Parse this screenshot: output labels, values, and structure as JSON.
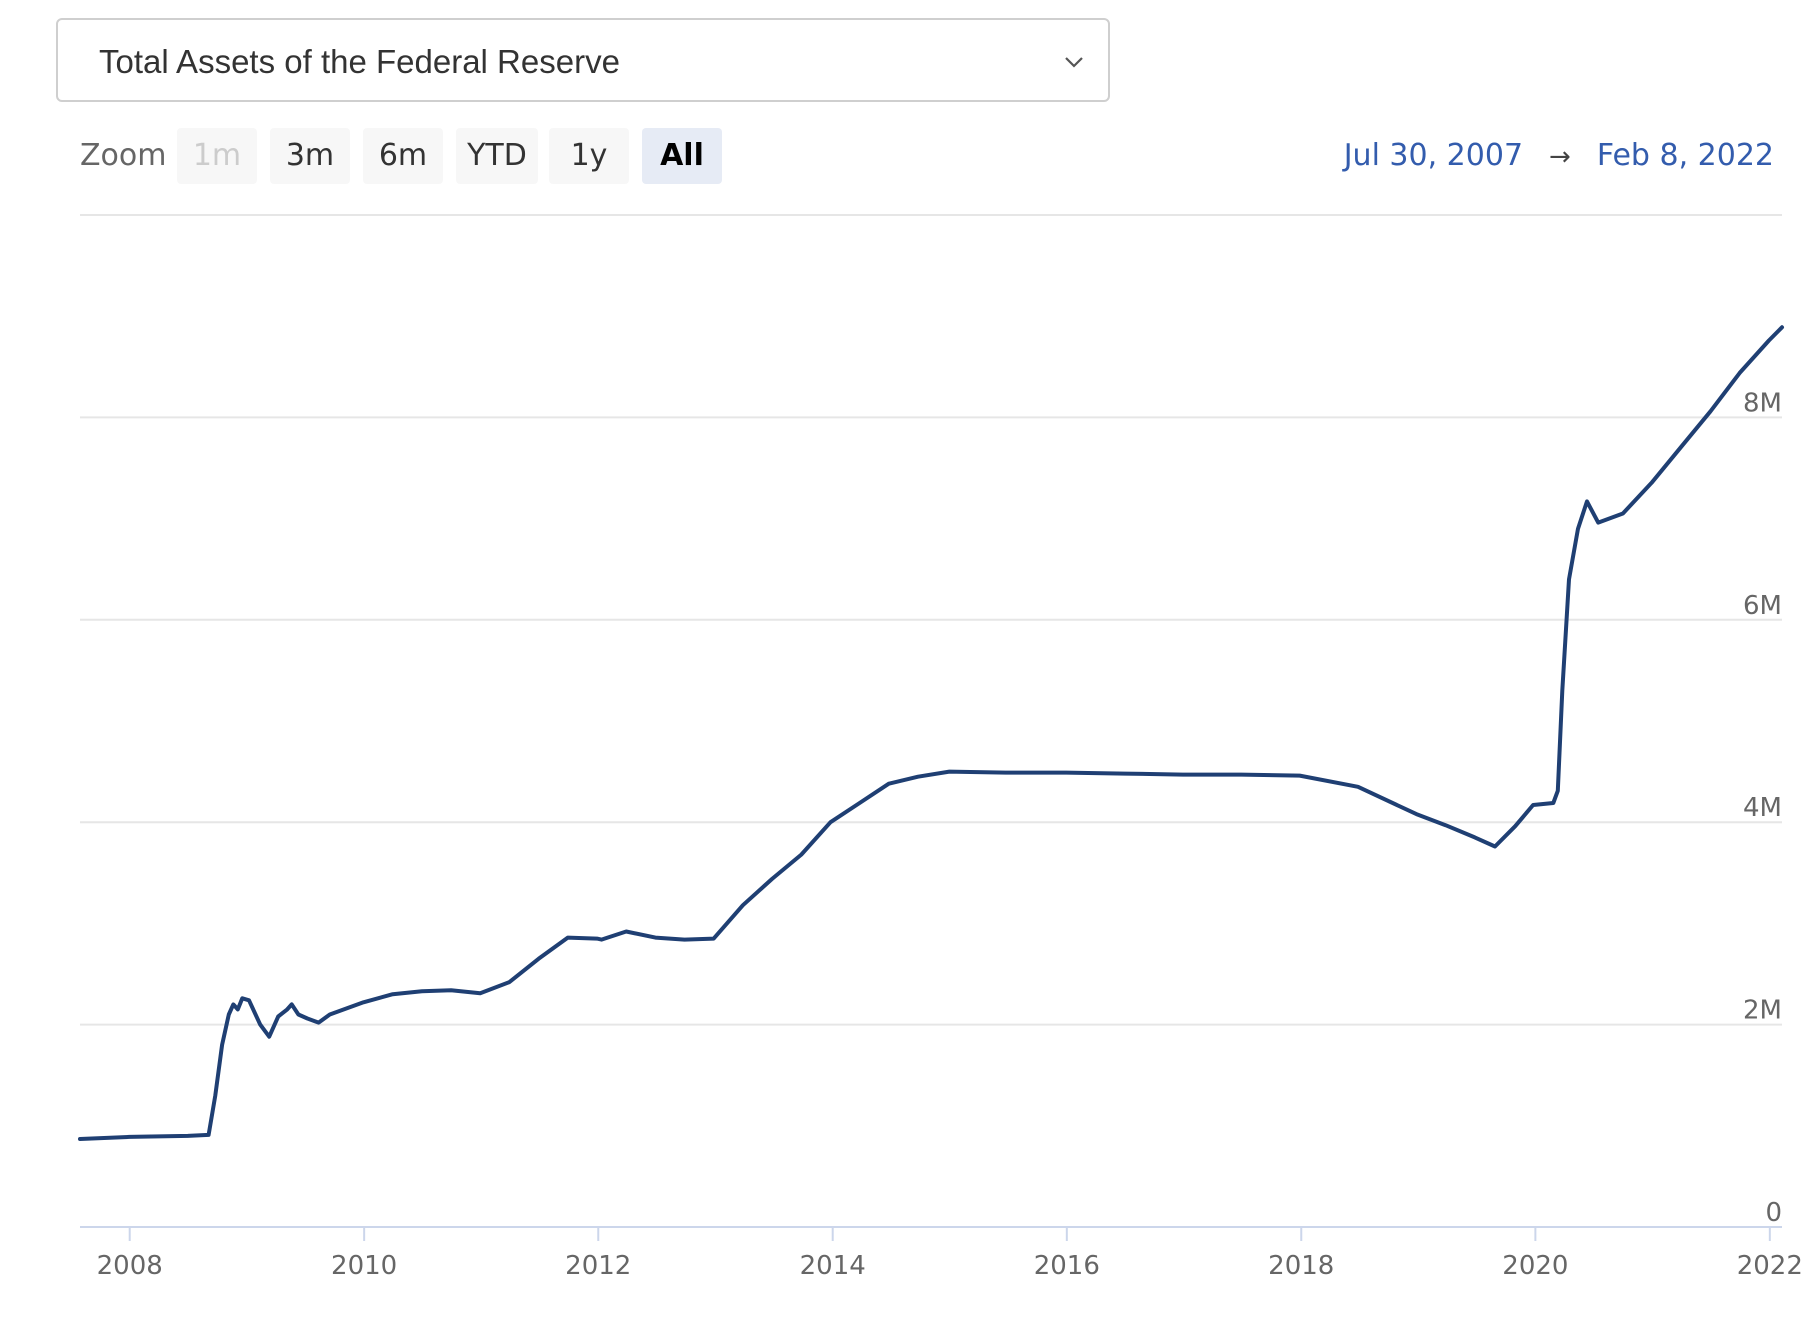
{
  "series_selector": {
    "selected": "Total Assets of the Federal Reserve",
    "icon": "chevron-down-icon"
  },
  "zoom": {
    "label": "Zoom",
    "buttons": [
      {
        "label": "1m",
        "state": "disabled"
      },
      {
        "label": "3m",
        "state": "normal"
      },
      {
        "label": "6m",
        "state": "normal"
      },
      {
        "label": "YTD",
        "state": "normal"
      },
      {
        "label": "1y",
        "state": "normal"
      },
      {
        "label": "All",
        "state": "active"
      }
    ]
  },
  "range": {
    "from": "Jul 30, 2007",
    "arrow": "→",
    "to": "Feb 8, 2022"
  },
  "colors": {
    "line": "#1f3f73",
    "grid": "#e6e6e6",
    "range_text": "#335cad"
  },
  "chart_data": {
    "type": "line",
    "title": "",
    "xlabel": "",
    "ylabel": "",
    "x_ticks": [
      "2008",
      "2010",
      "2012",
      "2014",
      "2016",
      "2018",
      "2020",
      "2022"
    ],
    "y_ticks": [
      {
        "value": 0,
        "label": "0"
      },
      {
        "value": 2000000,
        "label": "2M"
      },
      {
        "value": 4000000,
        "label": "4M"
      },
      {
        "value": 6000000,
        "label": "6M"
      },
      {
        "value": 8000000,
        "label": "8M"
      }
    ],
    "xlim": [
      "2007-07-30",
      "2022-02-08"
    ],
    "ylim": [
      0,
      10000000
    ],
    "grid": "horizontal",
    "series": [
      {
        "points": [
          [
            "2007-07-30",
            870000
          ],
          [
            "2007-12-31",
            890000
          ],
          [
            "2008-06-30",
            900000
          ],
          [
            "2008-09-03",
            910000
          ],
          [
            "2008-09-24",
            1300000
          ],
          [
            "2008-10-15",
            1800000
          ],
          [
            "2008-11-05",
            2100000
          ],
          [
            "2008-11-19",
            2200000
          ],
          [
            "2008-12-03",
            2150000
          ],
          [
            "2008-12-17",
            2260000
          ],
          [
            "2009-01-07",
            2240000
          ],
          [
            "2009-02-11",
            2000000
          ],
          [
            "2009-03-11",
            1880000
          ],
          [
            "2009-04-08",
            2080000
          ],
          [
            "2009-05-06",
            2150000
          ],
          [
            "2009-05-20",
            2200000
          ],
          [
            "2009-06-10",
            2100000
          ],
          [
            "2009-07-08",
            2060000
          ],
          [
            "2009-08-12",
            2020000
          ],
          [
            "2009-09-16",
            2100000
          ],
          [
            "2009-12-30",
            2220000
          ],
          [
            "2010-03-31",
            2300000
          ],
          [
            "2010-06-30",
            2330000
          ],
          [
            "2010-09-29",
            2340000
          ],
          [
            "2010-12-29",
            2310000
          ],
          [
            "2011-03-30",
            2420000
          ],
          [
            "2011-06-29",
            2650000
          ],
          [
            "2011-09-28",
            2860000
          ],
          [
            "2011-12-28",
            2850000
          ],
          [
            "2012-01-11",
            2840000
          ],
          [
            "2012-03-28",
            2920000
          ],
          [
            "2012-06-27",
            2860000
          ],
          [
            "2012-09-26",
            2840000
          ],
          [
            "2012-12-26",
            2850000
          ],
          [
            "2013-03-27",
            3180000
          ],
          [
            "2013-06-26",
            3440000
          ],
          [
            "2013-09-25",
            3680000
          ],
          [
            "2013-12-25",
            4000000
          ],
          [
            "2014-03-26",
            4190000
          ],
          [
            "2014-06-25",
            4380000
          ],
          [
            "2014-09-24",
            4450000
          ],
          [
            "2014-12-31",
            4500000
          ],
          [
            "2015-06-24",
            4490000
          ],
          [
            "2015-12-30",
            4490000
          ],
          [
            "2016-06-29",
            4480000
          ],
          [
            "2016-12-28",
            4470000
          ],
          [
            "2017-06-28",
            4470000
          ],
          [
            "2017-12-27",
            4460000
          ],
          [
            "2018-06-27",
            4350000
          ],
          [
            "2018-12-26",
            4080000
          ],
          [
            "2019-03-27",
            3970000
          ],
          [
            "2019-06-26",
            3850000
          ],
          [
            "2019-08-28",
            3760000
          ],
          [
            "2019-10-30",
            3960000
          ],
          [
            "2019-12-25",
            4170000
          ],
          [
            "2020-02-26",
            4190000
          ],
          [
            "2020-03-11",
            4310000
          ],
          [
            "2020-03-25",
            5300000
          ],
          [
            "2020-04-15",
            6400000
          ],
          [
            "2020-05-13",
            6900000
          ],
          [
            "2020-06-10",
            7170000
          ],
          [
            "2020-07-15",
            6960000
          ],
          [
            "2020-09-30",
            7050000
          ],
          [
            "2020-12-30",
            7360000
          ],
          [
            "2021-03-31",
            7710000
          ],
          [
            "2021-06-30",
            8060000
          ],
          [
            "2021-09-29",
            8440000
          ],
          [
            "2021-12-29",
            8760000
          ],
          [
            "2022-02-08",
            8890000
          ]
        ]
      }
    ]
  }
}
